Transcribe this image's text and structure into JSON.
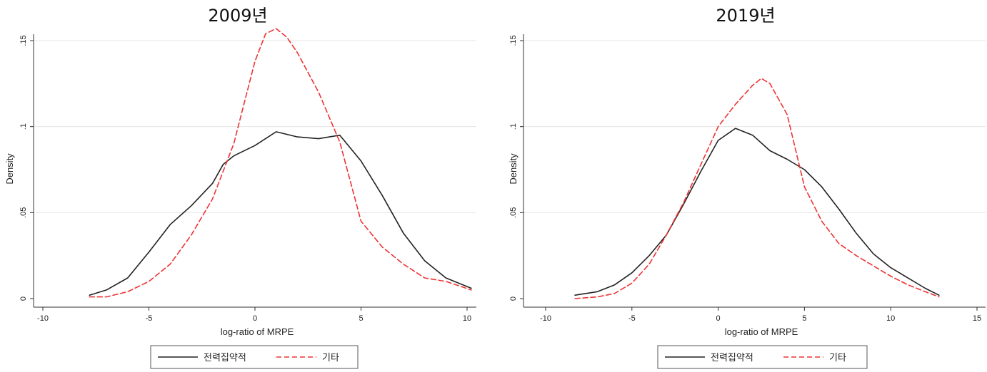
{
  "chart_data": [
    {
      "type": "line",
      "title": "2009년",
      "xlabel": "log-ratio of MRPE",
      "ylabel": "Density",
      "xlim": [
        -10,
        10.3
      ],
      "ylim": [
        0,
        0.16
      ],
      "xticks": [
        -10,
        -5,
        0,
        5,
        10
      ],
      "xtick_labels": [
        "-10",
        "-5",
        "0",
        "5",
        "10"
      ],
      "yticks": [
        0,
        0.05,
        0.1,
        0.15
      ],
      "ytick_labels": [
        "0",
        ".05",
        ".1",
        ".15"
      ],
      "grid": true,
      "legend_position": "bottom",
      "series": [
        {
          "name": "전력집약적",
          "color": "#222222",
          "dash": "solid",
          "x": [
            -7.8,
            -7,
            -6,
            -5,
            -4,
            -3,
            -2,
            -1.5,
            -1,
            0,
            1,
            2,
            3,
            4,
            5,
            6,
            7,
            8,
            9,
            10.2
          ],
          "y": [
            0.002,
            0.005,
            0.012,
            0.027,
            0.043,
            0.054,
            0.067,
            0.078,
            0.083,
            0.089,
            0.097,
            0.094,
            0.093,
            0.095,
            0.08,
            0.06,
            0.038,
            0.022,
            0.012,
            0.006
          ]
        },
        {
          "name": "기타",
          "color": "#ee3333",
          "dash": "dashed",
          "x": [
            -7.8,
            -7,
            -6,
            -5,
            -4,
            -3,
            -2,
            -1,
            0,
            0.5,
            1,
            1.5,
            2,
            3,
            4,
            5,
            6,
            7,
            8,
            9,
            10.2
          ],
          "y": [
            0.001,
            0.001,
            0.004,
            0.01,
            0.02,
            0.037,
            0.058,
            0.09,
            0.138,
            0.154,
            0.157,
            0.152,
            0.143,
            0.12,
            0.091,
            0.045,
            0.03,
            0.02,
            0.012,
            0.01,
            0.005
          ]
        }
      ]
    },
    {
      "type": "line",
      "title": "2019년",
      "xlabel": "log-ratio of MRPE",
      "ylabel": "Density",
      "xlim": [
        -10,
        15
      ],
      "ylim": [
        0,
        0.15
      ],
      "xticks": [
        -10,
        -5,
        0,
        5,
        10,
        15
      ],
      "xtick_labels": [
        "-10",
        "-5",
        "0",
        "5",
        "10",
        "15"
      ],
      "yticks": [
        0,
        0.05,
        0.1,
        0.15
      ],
      "ytick_labels": [
        "0",
        ".05",
        ".1",
        ".15"
      ],
      "grid": true,
      "legend_position": "bottom",
      "series": [
        {
          "name": "전력집약적",
          "color": "#222222",
          "dash": "solid",
          "x": [
            -8.3,
            -7,
            -6,
            -5,
            -4,
            -3,
            -2,
            -1,
            0,
            1,
            2,
            3,
            4,
            5,
            6,
            7,
            8,
            9,
            10,
            11,
            12,
            12.8
          ],
          "y": [
            0.002,
            0.004,
            0.008,
            0.015,
            0.025,
            0.037,
            0.055,
            0.074,
            0.092,
            0.099,
            0.095,
            0.086,
            0.081,
            0.075,
            0.065,
            0.052,
            0.038,
            0.026,
            0.018,
            0.012,
            0.006,
            0.002
          ]
        },
        {
          "name": "기타",
          "color": "#ee3333",
          "dash": "dashed",
          "x": [
            -8.3,
            -7,
            -6,
            -5,
            -4,
            -3,
            -2,
            -1,
            0,
            1,
            2,
            2.5,
            3,
            4,
            5,
            6,
            7,
            8,
            9,
            10,
            11,
            12,
            12.8
          ],
          "y": [
            0,
            0.001,
            0.003,
            0.009,
            0.02,
            0.037,
            0.056,
            0.078,
            0.1,
            0.113,
            0.124,
            0.128,
            0.125,
            0.107,
            0.065,
            0.045,
            0.032,
            0.025,
            0.019,
            0.013,
            0.008,
            0.004,
            0.001
          ]
        }
      ]
    }
  ]
}
